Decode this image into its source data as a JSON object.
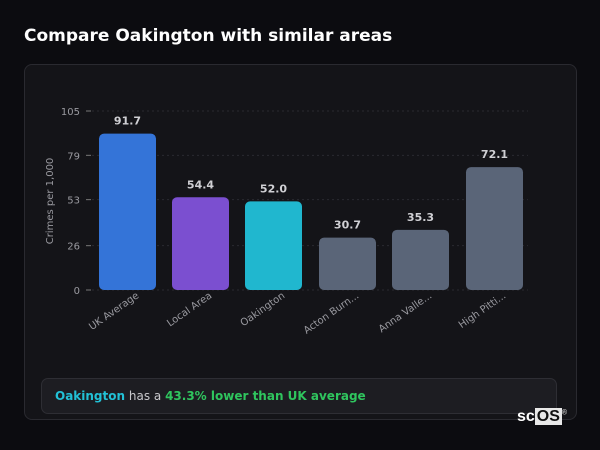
{
  "header": {
    "title": "Compare Oakington with similar areas"
  },
  "chart_data": {
    "type": "bar",
    "title": "",
    "xlabel": "",
    "ylabel": "Crimes per 1,000",
    "ylim": [
      0,
      105
    ],
    "yticks": [
      0,
      26,
      53,
      79,
      105
    ],
    "grid": true,
    "categories": [
      "UK Average",
      "Local Area",
      "Oakington",
      "Acton Burn...",
      "Anna Valle...",
      "High Pitti..."
    ],
    "values": [
      91.7,
      54.4,
      52.0,
      30.7,
      35.3,
      72.1
    ],
    "value_labels": [
      "91.7",
      "54.4",
      "52.0",
      "30.7",
      "35.3",
      "72.1"
    ],
    "colors": [
      "#3474d8",
      "#7b4fd0",
      "#20b7cf",
      "#5a6578",
      "#5a6578",
      "#5a6578"
    ]
  },
  "summary": {
    "area": "Oakington",
    "middle": " has a ",
    "comparison": "43.3% lower than UK average"
  },
  "logo": {
    "text": "scOS"
  }
}
